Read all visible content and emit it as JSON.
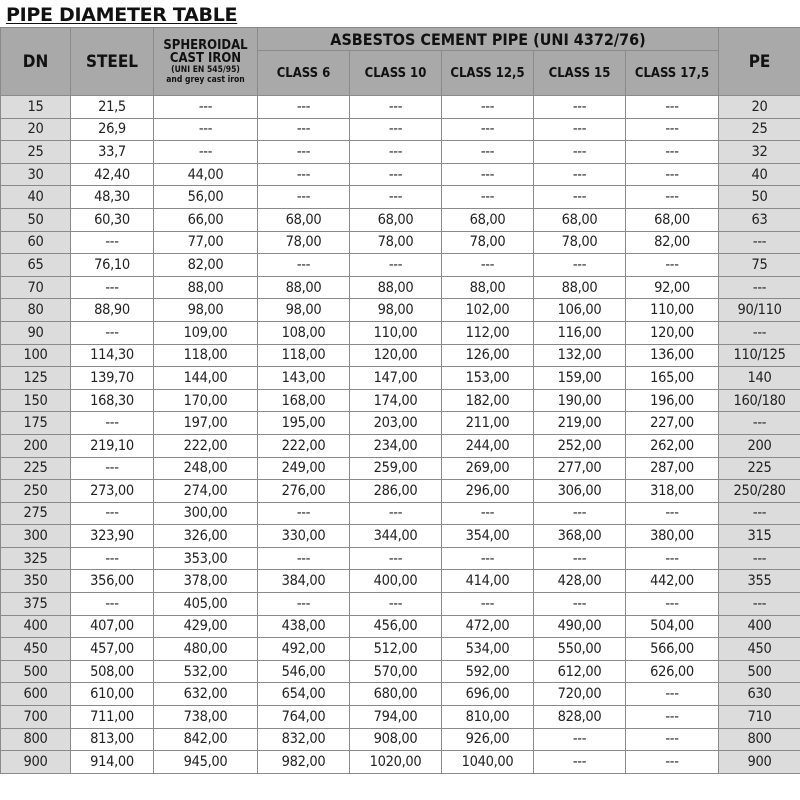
{
  "title": "PIPE DIAMETER TABLE",
  "headers": {
    "dn": "DN",
    "steel": "STEEL",
    "spheroidal_line1": "SPHEROIDAL",
    "spheroidal_line2": "CAST IRON",
    "spheroidal_line3": "(UNI EN 545/95)",
    "spheroidal_line4": "and grey cast iron",
    "asbestos_group": "ASBESTOS CEMENT PIPE (UNI 4372/76)",
    "classes": [
      "CLASS 6",
      "CLASS 10",
      "CLASS 12,5",
      "CLASS 15",
      "CLASS 17,5"
    ],
    "pe": "PE"
  },
  "rows": [
    [
      "15",
      "21,5",
      "---",
      "---",
      "---",
      "---",
      "---",
      "---",
      "20"
    ],
    [
      "20",
      "26,9",
      "---",
      "---",
      "---",
      "---",
      "---",
      "---",
      "25"
    ],
    [
      "25",
      "33,7",
      "---",
      "---",
      "---",
      "---",
      "---",
      "---",
      "32"
    ],
    [
      "30",
      "42,40",
      "44,00",
      "---",
      "---",
      "---",
      "---",
      "---",
      "40"
    ],
    [
      "40",
      "48,30",
      "56,00",
      "---",
      "---",
      "---",
      "---",
      "---",
      "50"
    ],
    [
      "50",
      "60,30",
      "66,00",
      "68,00",
      "68,00",
      "68,00",
      "68,00",
      "68,00",
      "63"
    ],
    [
      "60",
      "---",
      "77,00",
      "78,00",
      "78,00",
      "78,00",
      "78,00",
      "82,00",
      "---"
    ],
    [
      "65",
      "76,10",
      "82,00",
      "---",
      "---",
      "---",
      "---",
      "---",
      "75"
    ],
    [
      "70",
      "---",
      "88,00",
      "88,00",
      "88,00",
      "88,00",
      "88,00",
      "92,00",
      "---"
    ],
    [
      "80",
      "88,90",
      "98,00",
      "98,00",
      "98,00",
      "102,00",
      "106,00",
      "110,00",
      "90/110"
    ],
    [
      "90",
      "---",
      "109,00",
      "108,00",
      "110,00",
      "112,00",
      "116,00",
      "120,00",
      "---"
    ],
    [
      "100",
      "114,30",
      "118,00",
      "118,00",
      "120,00",
      "126,00",
      "132,00",
      "136,00",
      "110/125"
    ],
    [
      "125",
      "139,70",
      "144,00",
      "143,00",
      "147,00",
      "153,00",
      "159,00",
      "165,00",
      "140"
    ],
    [
      "150",
      "168,30",
      "170,00",
      "168,00",
      "174,00",
      "182,00",
      "190,00",
      "196,00",
      "160/180"
    ],
    [
      "175",
      "---",
      "197,00",
      "195,00",
      "203,00",
      "211,00",
      "219,00",
      "227,00",
      "---"
    ],
    [
      "200",
      "219,10",
      "222,00",
      "222,00",
      "234,00",
      "244,00",
      "252,00",
      "262,00",
      "200"
    ],
    [
      "225",
      "---",
      "248,00",
      "249,00",
      "259,00",
      "269,00",
      "277,00",
      "287,00",
      "225"
    ],
    [
      "250",
      "273,00",
      "274,00",
      "276,00",
      "286,00",
      "296,00",
      "306,00",
      "318,00",
      "250/280"
    ],
    [
      "275",
      "---",
      "300,00",
      "---",
      "---",
      "---",
      "---",
      "---",
      "---"
    ],
    [
      "300",
      "323,90",
      "326,00",
      "330,00",
      "344,00",
      "354,00",
      "368,00",
      "380,00",
      "315"
    ],
    [
      "325",
      "---",
      "353,00",
      "---",
      "---",
      "---",
      "---",
      "---",
      "---"
    ],
    [
      "350",
      "356,00",
      "378,00",
      "384,00",
      "400,00",
      "414,00",
      "428,00",
      "442,00",
      "355"
    ],
    [
      "375",
      "---",
      "405,00",
      "---",
      "---",
      "---",
      "---",
      "---",
      "---"
    ],
    [
      "400",
      "407,00",
      "429,00",
      "438,00",
      "456,00",
      "472,00",
      "490,00",
      "504,00",
      "400"
    ],
    [
      "450",
      "457,00",
      "480,00",
      "492,00",
      "512,00",
      "534,00",
      "550,00",
      "566,00",
      "450"
    ],
    [
      "500",
      "508,00",
      "532,00",
      "546,00",
      "570,00",
      "592,00",
      "612,00",
      "626,00",
      "500"
    ],
    [
      "600",
      "610,00",
      "632,00",
      "654,00",
      "680,00",
      "696,00",
      "720,00",
      "---",
      "630"
    ],
    [
      "700",
      "711,00",
      "738,00",
      "764,00",
      "794,00",
      "810,00",
      "828,00",
      "---",
      "710"
    ],
    [
      "800",
      "813,00",
      "842,00",
      "832,00",
      "908,00",
      "926,00",
      "---",
      "---",
      "800"
    ],
    [
      "900",
      "914,00",
      "945,00",
      "982,00",
      "1020,00",
      "1040,00",
      "---",
      "---",
      "900"
    ]
  ],
  "colors": {
    "header_bg": "#a9a9a9",
    "side_column_bg": "#dcdcdc",
    "border": "#8a8a8a"
  }
}
